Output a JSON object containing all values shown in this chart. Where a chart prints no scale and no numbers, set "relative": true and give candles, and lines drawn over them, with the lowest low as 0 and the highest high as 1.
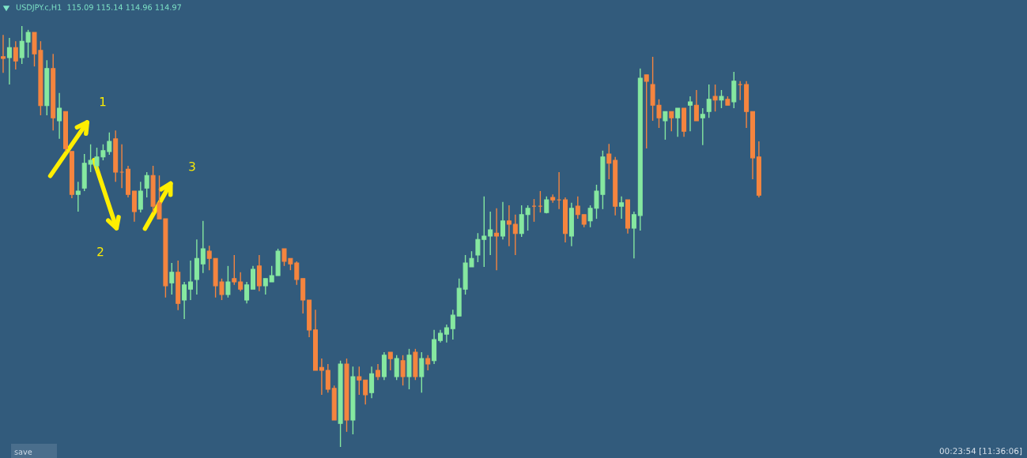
{
  "chart_data": {
    "type": "candlestick",
    "relative": true,
    "title": "USDJPY.c,H1  115.09 115.14 114.96 114.97",
    "annotations": [
      "1",
      "2",
      "3",
      "save",
      "00:23:54 [11:36:06]"
    ],
    "categories": [
      null,
      null,
      null,
      null,
      null,
      null,
      null,
      null,
      null,
      null,
      null,
      null,
      null,
      null,
      null,
      null,
      null,
      null,
      null,
      null,
      null,
      null,
      null,
      null,
      null,
      null,
      null,
      null,
      null,
      null,
      null,
      null,
      null,
      null,
      null,
      null,
      null,
      null,
      null,
      null,
      null,
      null,
      null,
      null,
      null,
      null,
      null,
      null,
      null,
      null,
      null,
      null,
      null,
      null,
      null,
      null,
      null,
      null,
      null,
      null,
      null,
      null,
      null,
      null,
      null,
      null,
      null,
      null,
      null,
      null,
      null,
      null,
      null,
      null,
      null,
      null,
      null,
      null,
      null,
      null,
      null,
      null,
      null,
      null,
      null,
      null,
      null,
      null,
      null,
      null,
      null,
      null,
      null,
      null,
      null,
      null,
      null,
      null,
      null,
      null,
      null,
      null,
      null,
      null,
      null,
      null,
      null,
      null,
      null,
      null,
      null,
      null,
      null,
      null,
      null,
      null,
      null,
      null,
      null,
      null,
      null,
      null
    ],
    "ohlc": [
      [
        0.927,
        0.979,
        0.889,
        0.923
      ],
      [
        0.925,
        0.972,
        0.861,
        0.949
      ],
      [
        0.949,
        0.964,
        0.897,
        0.917
      ],
      [
        0.925,
        1.0,
        0.91,
        0.964
      ],
      [
        0.962,
        0.991,
        0.925,
        0.985
      ],
      [
        0.985,
        0.985,
        0.904,
        0.934
      ],
      [
        0.942,
        0.964,
        0.788,
        0.811
      ],
      [
        0.811,
        0.919,
        0.788,
        0.899
      ],
      [
        0.899,
        0.934,
        0.752,
        0.782
      ],
      [
        0.775,
        0.841,
        0.732,
        0.805
      ],
      [
        0.797,
        0.797,
        0.702,
        0.709
      ],
      [
        0.702,
        0.702,
        0.591,
        0.6
      ],
      [
        0.6,
        0.63,
        0.559,
        0.608
      ],
      [
        0.615,
        0.696,
        0.608,
        0.674
      ],
      [
        0.672,
        0.719,
        0.653,
        0.681
      ],
      [
        0.668,
        0.711,
        0.659,
        0.689
      ],
      [
        0.689,
        0.719,
        0.681,
        0.704
      ],
      [
        0.702,
        0.747,
        0.694,
        0.726
      ],
      [
        0.732,
        0.752,
        0.63,
        0.653
      ],
      [
        0.653,
        0.719,
        0.615,
        0.653
      ],
      [
        0.66,
        0.668,
        0.593,
        0.6
      ],
      [
        0.608,
        0.608,
        0.535,
        0.559
      ],
      [
        0.565,
        0.63,
        0.557,
        0.608
      ],
      [
        0.615,
        0.653,
        0.593,
        0.645
      ],
      [
        0.645,
        0.668,
        0.557,
        0.572
      ],
      [
        0.58,
        0.645,
        0.542,
        0.542
      ],
      [
        0.542,
        0.542,
        0.355,
        0.383
      ],
      [
        0.39,
        0.437,
        0.362,
        0.415
      ],
      [
        0.415,
        0.443,
        0.325,
        0.341
      ],
      [
        0.349,
        0.392,
        0.304,
        0.385
      ],
      [
        0.375,
        0.443,
        0.349,
        0.392
      ],
      [
        0.398,
        0.493,
        0.362,
        0.448
      ],
      [
        0.435,
        0.537,
        0.413,
        0.471
      ],
      [
        0.465,
        0.478,
        0.42,
        0.448
      ],
      [
        0.448,
        0.448,
        0.355,
        0.383
      ],
      [
        0.392,
        0.4,
        0.349,
        0.362
      ],
      [
        0.362,
        0.43,
        0.355,
        0.392
      ],
      [
        0.4,
        0.456,
        0.385,
        0.392
      ],
      [
        0.392,
        0.415,
        0.37,
        0.375
      ],
      [
        0.349,
        0.392,
        0.341,
        0.385
      ],
      [
        0.375,
        0.43,
        0.375,
        0.422
      ],
      [
        0.43,
        0.456,
        0.37,
        0.383
      ],
      [
        0.383,
        0.4,
        0.362,
        0.4
      ],
      [
        0.392,
        0.43,
        0.392,
        0.407
      ],
      [
        0.407,
        0.471,
        0.407,
        0.465
      ],
      [
        0.471,
        0.471,
        0.43,
        0.441
      ],
      [
        0.448,
        0.448,
        0.42,
        0.435
      ],
      [
        0.437,
        0.441,
        0.385,
        0.398
      ],
      [
        0.4,
        0.4,
        0.317,
        0.349
      ],
      [
        0.349,
        0.349,
        0.261,
        0.278
      ],
      [
        0.278,
        0.326,
        0.182,
        0.182
      ],
      [
        0.189,
        0.21,
        0.124,
        0.182
      ],
      [
        0.182,
        0.197,
        0.129,
        0.137
      ],
      [
        0.139,
        0.146,
        0.064,
        0.064
      ],
      [
        0.056,
        0.205,
        0.0,
        0.197
      ],
      [
        0.197,
        0.21,
        0.036,
        0.064
      ],
      [
        0.064,
        0.191,
        0.03,
        0.167
      ],
      [
        0.167,
        0.191,
        0.124,
        0.159
      ],
      [
        0.159,
        0.159,
        0.101,
        0.124
      ],
      [
        0.129,
        0.191,
        0.116,
        0.174
      ],
      [
        0.182,
        0.197,
        0.159,
        0.167
      ],
      [
        0.167,
        0.225,
        0.159,
        0.218
      ],
      [
        0.225,
        0.225,
        0.182,
        0.21
      ],
      [
        0.167,
        0.218,
        0.159,
        0.21
      ],
      [
        0.205,
        0.218,
        0.146,
        0.167
      ],
      [
        0.167,
        0.233,
        0.137,
        0.218
      ],
      [
        0.225,
        0.233,
        0.159,
        0.167
      ],
      [
        0.167,
        0.225,
        0.129,
        0.21
      ],
      [
        0.21,
        0.218,
        0.182,
        0.197
      ],
      [
        0.205,
        0.278,
        0.197,
        0.255
      ],
      [
        0.253,
        0.278,
        0.248,
        0.27
      ],
      [
        0.268,
        0.291,
        0.248,
        0.283
      ],
      [
        0.281,
        0.326,
        0.255,
        0.313
      ],
      [
        0.311,
        0.4,
        0.311,
        0.377
      ],
      [
        0.375,
        0.456,
        0.362,
        0.437
      ],
      [
        0.428,
        0.465,
        0.428,
        0.448
      ],
      [
        0.456,
        0.508,
        0.439,
        0.493
      ],
      [
        0.493,
        0.595,
        0.428,
        0.501
      ],
      [
        0.501,
        0.559,
        0.456,
        0.516
      ],
      [
        0.508,
        0.567,
        0.42,
        0.501
      ],
      [
        0.501,
        0.582,
        0.493,
        0.537
      ],
      [
        0.537,
        0.574,
        0.477,
        0.529
      ],
      [
        0.529,
        0.552,
        0.456,
        0.507
      ],
      [
        0.507,
        0.574,
        0.499,
        0.552
      ],
      [
        0.552,
        0.574,
        0.514,
        0.567
      ],
      [
        0.572,
        0.589,
        0.535,
        0.572
      ],
      [
        0.572,
        0.608,
        0.557,
        0.572
      ],
      [
        0.557,
        0.595,
        0.555,
        0.587
      ],
      [
        0.593,
        0.6,
        0.58,
        0.587
      ],
      [
        0.587,
        0.653,
        0.565,
        0.587
      ],
      [
        0.587,
        0.593,
        0.486,
        0.507
      ],
      [
        0.501,
        0.58,
        0.477,
        0.567
      ],
      [
        0.572,
        0.595,
        0.542,
        0.552
      ],
      [
        0.552,
        0.552,
        0.522,
        0.529
      ],
      [
        0.537,
        0.574,
        0.522,
        0.567
      ],
      [
        0.567,
        0.623,
        0.542,
        0.608
      ],
      [
        0.6,
        0.704,
        0.565,
        0.689
      ],
      [
        0.696,
        0.72,
        0.636,
        0.674
      ],
      [
        0.681,
        0.689,
        0.55,
        0.572
      ],
      [
        0.572,
        0.595,
        0.542,
        0.58
      ],
      [
        0.587,
        0.587,
        0.507,
        0.52
      ],
      [
        0.52,
        0.559,
        0.448,
        0.552
      ],
      [
        0.55,
        0.899,
        0.514,
        0.876
      ],
      [
        0.884,
        0.884,
        0.709,
        0.869
      ],
      [
        0.861,
        0.927,
        0.775,
        0.812
      ],
      [
        0.812,
        0.826,
        0.758,
        0.782
      ],
      [
        0.775,
        0.797,
        0.73,
        0.797
      ],
      [
        0.797,
        0.797,
        0.75,
        0.782
      ],
      [
        0.782,
        0.805,
        0.737,
        0.805
      ],
      [
        0.805,
        0.805,
        0.737,
        0.75
      ],
      [
        0.812,
        0.833,
        0.75,
        0.82
      ],
      [
        0.812,
        0.848,
        0.775,
        0.775
      ],
      [
        0.782,
        0.805,
        0.717,
        0.79
      ],
      [
        0.797,
        0.861,
        0.782,
        0.826
      ],
      [
        0.833,
        0.861,
        0.797,
        0.824
      ],
      [
        0.824,
        0.848,
        0.805,
        0.833
      ],
      [
        0.826,
        0.833,
        0.812,
        0.812
      ],
      [
        0.82,
        0.891,
        0.805,
        0.869
      ],
      [
        0.861,
        0.869,
        0.824,
        0.861
      ],
      [
        0.861,
        0.869,
        0.758,
        0.797
      ],
      [
        0.797,
        0.797,
        0.636,
        0.687
      ],
      [
        0.689,
        0.726,
        0.593,
        0.598
      ]
    ],
    "colors": [
      "#f5853f",
      "#86e8a0",
      "#f5853f",
      "#86e8a0",
      "#86e8a0",
      "#f5853f",
      "#f5853f",
      "#86e8a0",
      "#f5853f",
      "#86e8a0",
      "#f5853f",
      "#f5853f",
      "#86e8a0",
      "#86e8a0",
      "#86e8a0",
      "#86e8a0",
      "#86e8a0",
      "#86e8a0",
      "#f5853f",
      "#f5853f",
      "#f5853f",
      "#f5853f",
      "#86e8a0",
      "#86e8a0",
      "#f5853f",
      "#f5853f",
      "#f5853f",
      "#86e8a0",
      "#f5853f",
      "#86e8a0",
      "#86e8a0",
      "#86e8a0",
      "#86e8a0",
      "#f5853f",
      "#f5853f",
      "#f5853f",
      "#86e8a0",
      "#f5853f",
      "#f5853f",
      "#86e8a0",
      "#86e8a0",
      "#f5853f",
      "#86e8a0",
      "#86e8a0",
      "#86e8a0",
      "#f5853f",
      "#f5853f",
      "#f5853f",
      "#f5853f",
      "#f5853f",
      "#f5853f",
      "#f5853f",
      "#f5853f",
      "#f5853f",
      "#86e8a0",
      "#f5853f",
      "#86e8a0",
      "#f5853f",
      "#f5853f",
      "#86e8a0",
      "#f5853f",
      "#86e8a0",
      "#f5853f",
      "#86e8a0",
      "#f5853f",
      "#86e8a0",
      "#f5853f",
      "#86e8a0",
      "#f5853f",
      "#86e8a0",
      "#86e8a0",
      "#86e8a0",
      "#86e8a0",
      "#86e8a0",
      "#86e8a0",
      "#86e8a0",
      "#86e8a0",
      "#86e8a0",
      "#86e8a0",
      "#f5853f",
      "#86e8a0",
      "#f5853f",
      "#f5853f",
      "#86e8a0",
      "#86e8a0",
      "#f5853f",
      "#f5853f",
      "#86e8a0",
      "#f5853f",
      "#f5853f",
      "#f5853f",
      "#86e8a0",
      "#f5853f",
      "#f5853f",
      "#86e8a0",
      "#86e8a0",
      "#86e8a0",
      "#f5853f",
      "#f5853f",
      "#86e8a0",
      "#f5853f",
      "#86e8a0",
      "#86e8a0",
      "#f5853f",
      "#f5853f",
      "#f5853f",
      "#86e8a0",
      "#f5853f",
      "#86e8a0",
      "#f5853f",
      "#86e8a0",
      "#f5853f",
      "#86e8a0",
      "#86e8a0",
      "#f5853f",
      "#86e8a0",
      "#f5853f",
      "#86e8a0",
      "#f5853f",
      "#f5853f",
      "#f5853f",
      "#f5853f"
    ]
  }
}
